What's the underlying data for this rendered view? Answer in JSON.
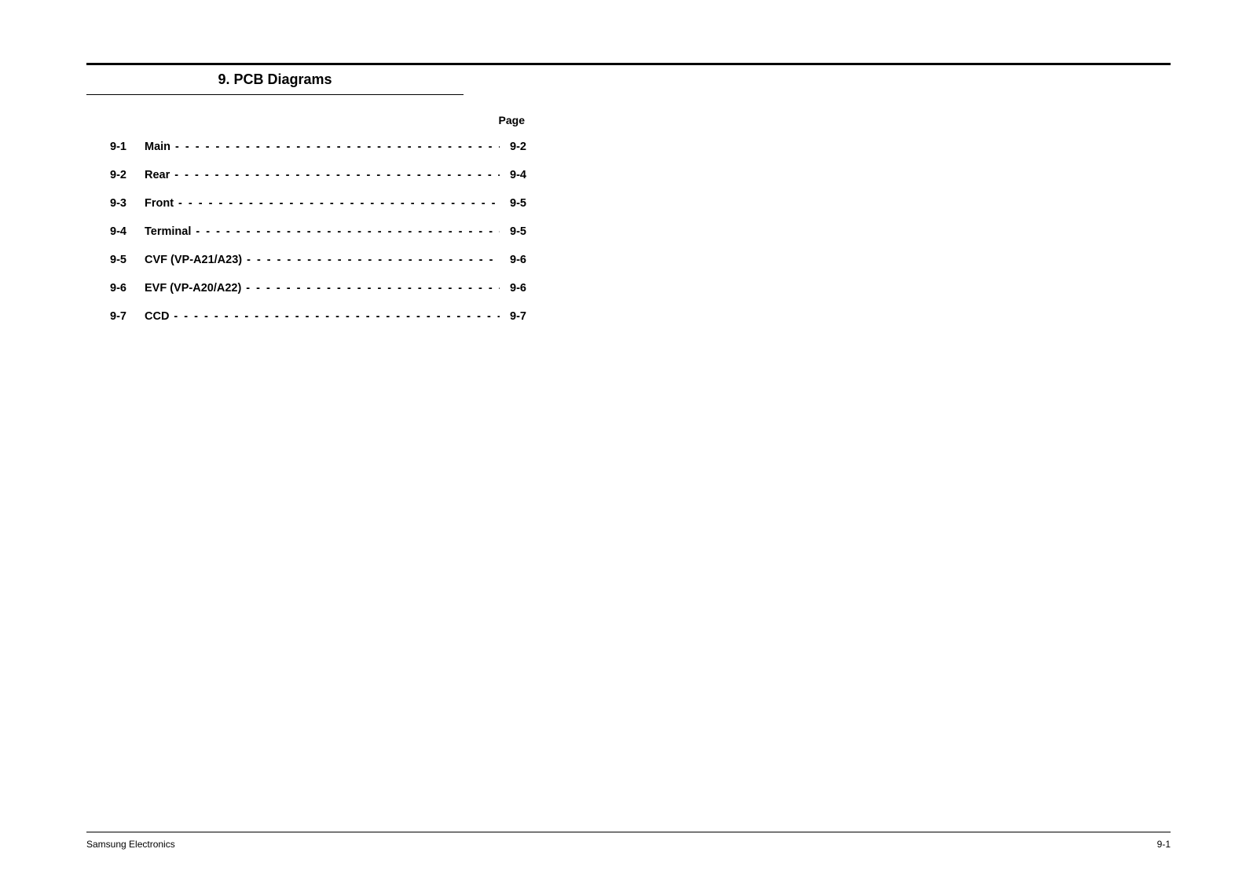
{
  "chapter": {
    "title": "9. PCB Diagrams"
  },
  "toc": {
    "page_label": "Page",
    "entries": [
      {
        "num": "9-1",
        "label": "Main",
        "page": "9-2"
      },
      {
        "num": "9-2",
        "label": "Rear",
        "page": "9-4"
      },
      {
        "num": "9-3",
        "label": "Front",
        "page": "9-5"
      },
      {
        "num": "9-4",
        "label": "Terminal",
        "page": "9-5"
      },
      {
        "num": "9-5",
        "label": "CVF (VP-A21/A23)",
        "page": "9-6"
      },
      {
        "num": "9-6",
        "label": "EVF (VP-A20/A22)",
        "page": "9-6"
      },
      {
        "num": "9-7",
        "label": "CCD",
        "page": "9-7"
      }
    ]
  },
  "footer": {
    "left": "Samsung Electronics",
    "right": "9-1"
  },
  "style": {
    "dash_fill": "- - - - - - - - - - - - - - - - - - - - - - - - - - - - - - - - - - -"
  }
}
